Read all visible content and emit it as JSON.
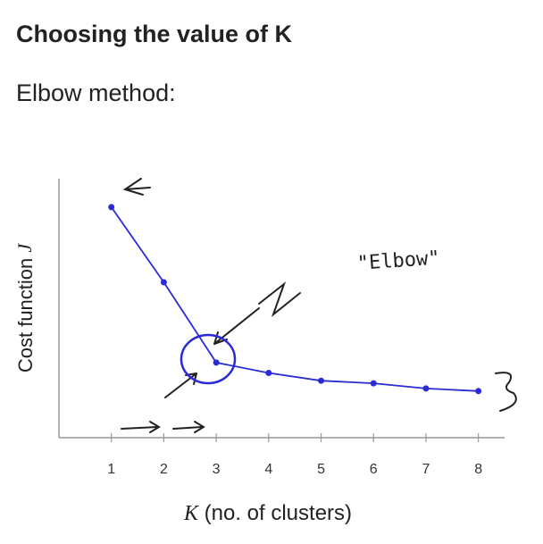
{
  "chart_data": {
    "type": "line",
    "title": "Choosing the value of K",
    "subtitle": "Elbow method:",
    "xlabel_symbol": "K",
    "xlabel": "(no. of clusters)",
    "ylabel": "Cost function",
    "ylabel_symbol": "J",
    "annotation": "\"Elbow\"",
    "x": [
      1,
      2,
      3,
      4,
      5,
      6,
      7,
      8
    ],
    "series": [
      {
        "color": "#2b2bd6",
        "values": [
          8.9,
          6.0,
          2.9,
          2.5,
          2.2,
          2.1,
          1.9,
          1.8
        ]
      }
    ],
    "xlim": [
      0,
      8.5
    ],
    "xticks": [
      1,
      2,
      3,
      4,
      5,
      6,
      7,
      8
    ],
    "ylim": [
      0,
      10
    ]
  }
}
